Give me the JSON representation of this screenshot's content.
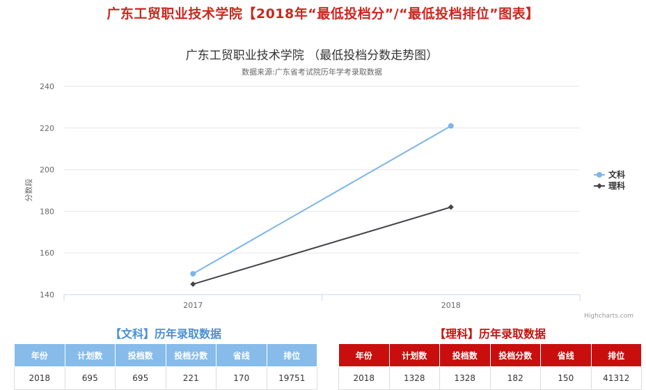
{
  "page_title": "广东工贸职业技术学院【2018年“最低投档分”/“最低投档排位”图表】",
  "chart_data": {
    "type": "line",
    "title": "广东工贸职业技术学院 （最低投档分数走势图）",
    "subtitle": "数据来源:广东省考试院历年学考录取数据",
    "ylabel": "分数段",
    "xlabel": "",
    "categories": [
      "2017",
      "2018"
    ],
    "yticks": [
      140,
      160,
      180,
      200,
      220,
      240
    ],
    "ylim": [
      140,
      240
    ],
    "grid": true,
    "legend_position": "right",
    "series": [
      {
        "name": "文科",
        "values": [
          150,
          221
        ],
        "color": "#7cb5ec",
        "marker": "circle"
      },
      {
        "name": "理科",
        "values": [
          145,
          182
        ],
        "color": "#434348",
        "marker": "diamond"
      }
    ],
    "credits": "Highcharts.com"
  },
  "tables": {
    "arts": {
      "title": "【文科】历年录取数据",
      "headers": [
        "年份",
        "计划数",
        "投档数",
        "投档分数",
        "省线",
        "排位"
      ],
      "rows": [
        [
          "2018",
          "695",
          "695",
          "221",
          "170",
          "19751"
        ]
      ]
    },
    "science": {
      "title": "【理科】历年录取数据",
      "headers": [
        "年份",
        "计划数",
        "投档数",
        "投档分数",
        "省线",
        "排位"
      ],
      "rows": [
        [
          "2018",
          "1328",
          "1328",
          "182",
          "150",
          "41312"
        ]
      ]
    }
  }
}
